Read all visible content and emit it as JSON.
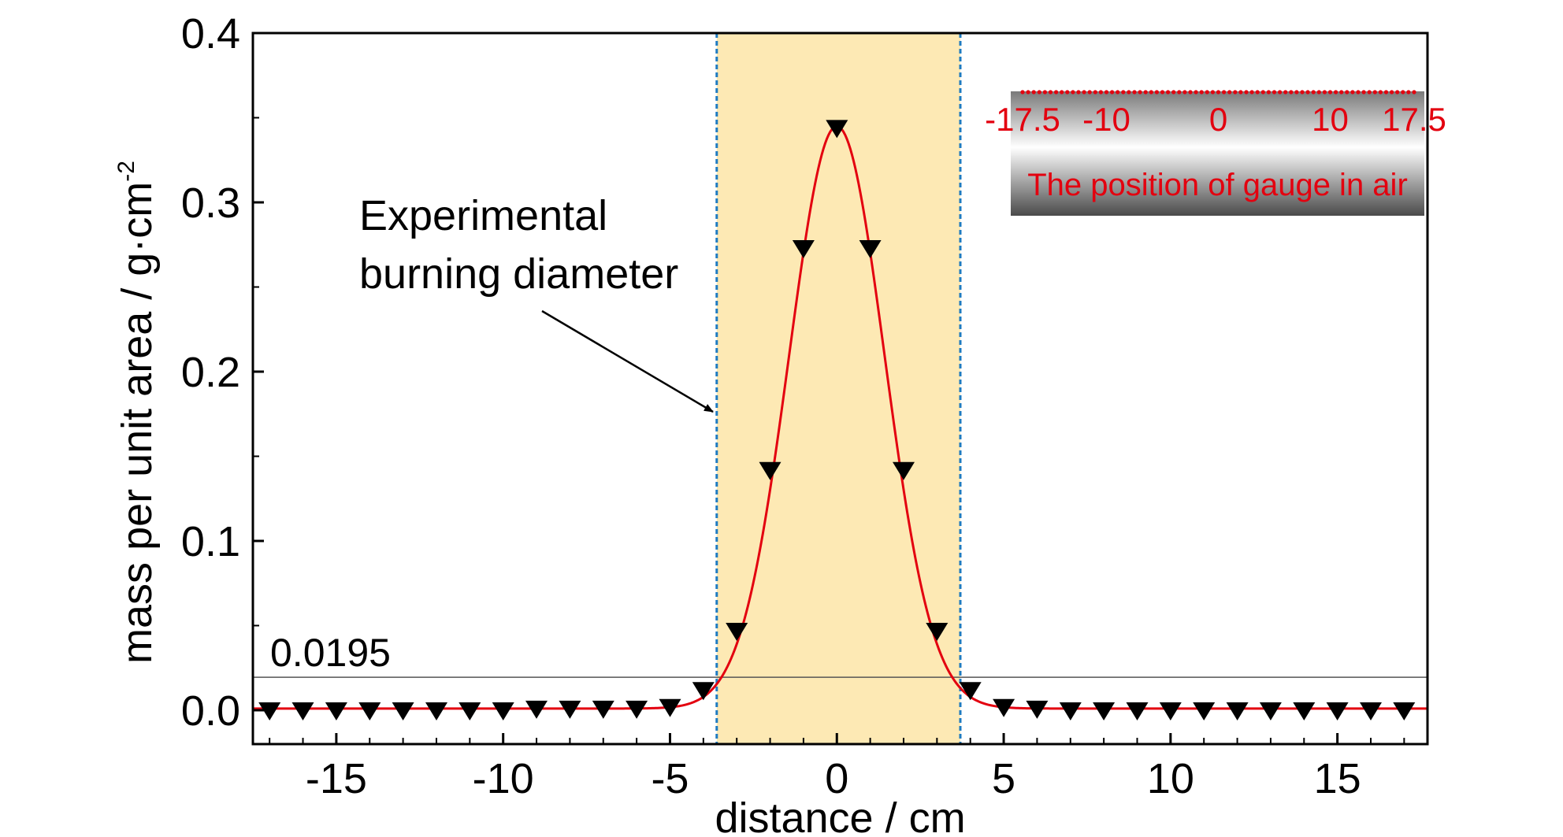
{
  "chart_data": {
    "type": "scatter",
    "title": "",
    "xlabel": "distance / cm",
    "ylabel": "mass per unit area / g·cm",
    "ylabel_superscript": "-2",
    "xlim": [
      -17.5,
      17.7
    ],
    "ylim": [
      -0.02,
      0.4
    ],
    "xticks": [
      -15,
      -10,
      -5,
      0,
      5,
      10,
      15
    ],
    "xtick_labels": [
      "-15",
      "-10",
      "-5",
      "0",
      "5",
      "10",
      "15"
    ],
    "yticks": [
      0.0,
      0.1,
      0.2,
      0.3,
      0.4
    ],
    "ytick_labels": [
      "0.0",
      "0.1",
      "0.2",
      "0.3",
      "0.4"
    ],
    "grid": false,
    "legend": "none",
    "series": [
      {
        "marker": "down-triangle",
        "color": "#000000",
        "x": [
          -17,
          -16,
          -15,
          -14,
          -13,
          -12,
          -11,
          -10,
          -9,
          -8,
          -7,
          -6,
          -5,
          -4,
          -3,
          -2,
          -1,
          0,
          1,
          2,
          3,
          4,
          5,
          6,
          7,
          8,
          9,
          10,
          11,
          12,
          13,
          14,
          15,
          16,
          17
        ],
        "y": [
          0.0,
          0.0,
          0.0,
          0.0,
          0.0,
          0.0,
          0.0,
          0.0,
          0.001,
          0.001,
          0.001,
          0.001,
          0.002,
          0.012,
          0.047,
          0.142,
          0.273,
          0.344,
          0.273,
          0.142,
          0.047,
          0.012,
          0.002,
          0.001,
          0.0,
          0.0,
          0.0,
          0.0,
          0.0,
          0.0,
          0.0,
          0.0,
          0.0,
          0.0,
          0.0
        ]
      }
    ],
    "fit_curve": {
      "type": "gaussian",
      "color": "#e3000f",
      "amplitude": 0.344,
      "center": 0,
      "sigma": 1.43,
      "offset": 0.001
    },
    "threshold": {
      "value": 0.0195,
      "label": "0.0195",
      "color": "#555555"
    },
    "highlight_region": {
      "x_range": [
        -3.6,
        3.7
      ],
      "fill": "#fde9b4",
      "border": "#1f7bc1"
    },
    "annotation": {
      "line1": "Experimental",
      "line2": "burning diameter"
    },
    "inset": {
      "scale_labels": [
        "-17.5",
        "-10",
        "0",
        "10",
        "17.5"
      ],
      "caption": "The position of gauge in air",
      "text_color": "#e3000f"
    }
  }
}
